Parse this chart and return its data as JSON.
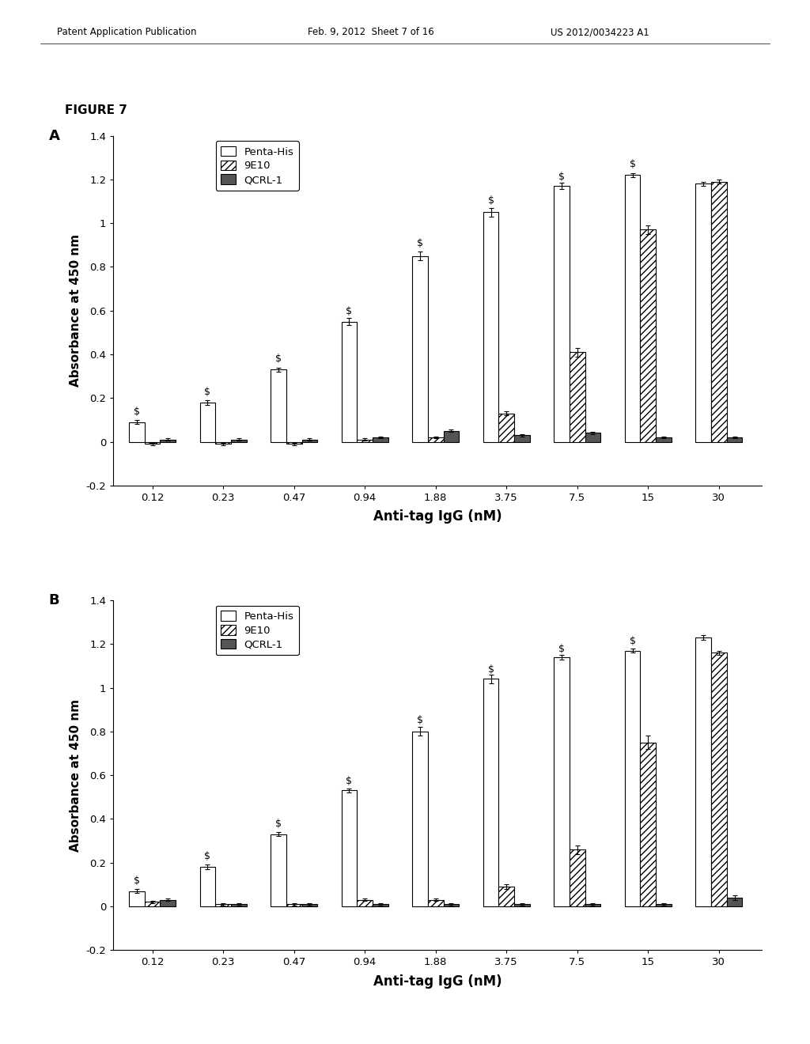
{
  "header_left": "Patent Application Publication",
  "header_center": "Feb. 9, 2012  Sheet 7 of 16",
  "header_right": "US 2012/0034223 A1",
  "figure_label": "FIGURE 7",
  "categories": [
    "0.12",
    "0.23",
    "0.47",
    "0.94",
    "1.88",
    "3.75",
    "7.5",
    "15",
    "30"
  ],
  "legend_labels": [
    "Penta-His",
    "9E10",
    "QCRL-1"
  ],
  "ylabel": "Absorbance at 450 nm",
  "xlabel": "Anti-tag IgG (nM)",
  "ylim": [
    -0.2,
    1.4
  ],
  "yticks": [
    -0.2,
    0.0,
    0.2,
    0.4,
    0.6,
    0.8,
    1.0,
    1.2,
    1.4
  ],
  "ytick_labels": [
    "-0.2",
    "0",
    "0.2",
    "0.4",
    "0.6",
    "0.8",
    "1",
    "1.2",
    "1.4"
  ],
  "panel_A": {
    "label": "A",
    "penta_his": [
      0.09,
      0.18,
      0.33,
      0.55,
      0.85,
      1.05,
      1.17,
      1.22,
      1.18
    ],
    "penta_his_err": [
      0.01,
      0.01,
      0.01,
      0.015,
      0.02,
      0.02,
      0.015,
      0.01,
      0.01
    ],
    "nine_e10": [
      -0.01,
      -0.01,
      -0.01,
      0.01,
      0.02,
      0.13,
      0.41,
      0.97,
      1.19
    ],
    "nine_e10_err": [
      0.005,
      0.005,
      0.005,
      0.005,
      0.005,
      0.01,
      0.02,
      0.02,
      0.01
    ],
    "qcrl1": [
      0.01,
      0.01,
      0.01,
      0.02,
      0.05,
      0.03,
      0.04,
      0.02,
      0.02
    ],
    "qcrl1_err": [
      0.005,
      0.005,
      0.005,
      0.005,
      0.005,
      0.005,
      0.005,
      0.005,
      0.005
    ],
    "dollar_sign_x": [
      0,
      1,
      2,
      3,
      4,
      5,
      6,
      7
    ],
    "dollar_sign_y": [
      0.115,
      0.205,
      0.355,
      0.575,
      0.885,
      1.08,
      1.19,
      1.245
    ]
  },
  "panel_B": {
    "label": "B",
    "penta_his": [
      0.07,
      0.18,
      0.33,
      0.53,
      0.8,
      1.04,
      1.14,
      1.17,
      1.23
    ],
    "penta_his_err": [
      0.01,
      0.01,
      0.01,
      0.01,
      0.02,
      0.02,
      0.01,
      0.01,
      0.01
    ],
    "nine_e10": [
      0.02,
      0.01,
      0.01,
      0.03,
      0.03,
      0.09,
      0.26,
      0.75,
      1.16
    ],
    "nine_e10_err": [
      0.005,
      0.005,
      0.005,
      0.005,
      0.005,
      0.01,
      0.02,
      0.03,
      0.01
    ],
    "qcrl1": [
      0.03,
      0.01,
      0.01,
      0.01,
      0.01,
      0.01,
      0.01,
      0.01,
      0.04
    ],
    "qcrl1_err": [
      0.005,
      0.005,
      0.005,
      0.005,
      0.005,
      0.005,
      0.005,
      0.005,
      0.01
    ],
    "dollar_sign_x": [
      0,
      1,
      2,
      3,
      4,
      5,
      6,
      7
    ],
    "dollar_sign_y": [
      0.095,
      0.205,
      0.355,
      0.55,
      0.83,
      1.06,
      1.155,
      1.19
    ]
  }
}
